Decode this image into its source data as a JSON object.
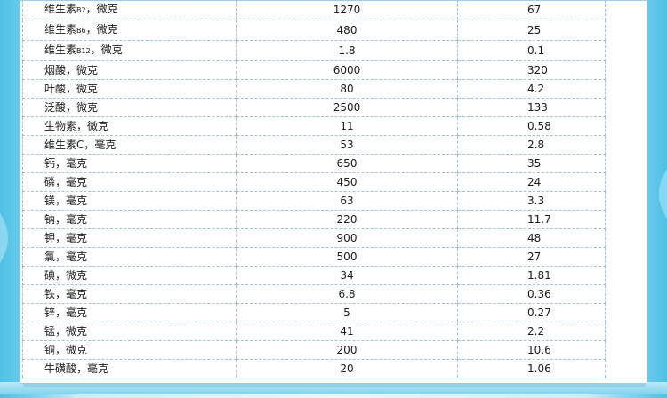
{
  "table": {
    "rows": [
      {
        "nutrient": "维生素",
        "sub": "B2",
        "unit": "，微克",
        "amount": "1270",
        "value": "67"
      },
      {
        "nutrient": "维生素",
        "sub": "B6",
        "unit": "，微克",
        "amount": "480",
        "value": "25"
      },
      {
        "nutrient": "维生素",
        "sub": "B12",
        "unit": "，微克",
        "amount": "1.8",
        "value": "0.1"
      },
      {
        "nutrient": "烟酸",
        "sub": "",
        "unit": "，微克",
        "amount": "6000",
        "value": "320"
      },
      {
        "nutrient": "叶酸",
        "sub": "",
        "unit": "，微克",
        "amount": "80",
        "value": "4.2"
      },
      {
        "nutrient": "泛酸",
        "sub": "",
        "unit": "，微克",
        "amount": "2500",
        "value": "133"
      },
      {
        "nutrient": "生物素",
        "sub": "",
        "unit": "，微克",
        "amount": "11",
        "value": "0.58"
      },
      {
        "nutrient": "维生素C",
        "sub": "",
        "unit": "，毫克",
        "amount": "53",
        "value": "2.8"
      },
      {
        "nutrient": "钙",
        "sub": "",
        "unit": "，毫克",
        "amount": "650",
        "value": "35"
      },
      {
        "nutrient": "磷",
        "sub": "",
        "unit": "，毫克",
        "amount": "450",
        "value": "24"
      },
      {
        "nutrient": "镁",
        "sub": "",
        "unit": "，毫克",
        "amount": "63",
        "value": "3.3"
      },
      {
        "nutrient": "钠",
        "sub": "",
        "unit": "，毫克",
        "amount": "220",
        "value": "11.7"
      },
      {
        "nutrient": "钾",
        "sub": "",
        "unit": "，毫克",
        "amount": "900",
        "value": "48"
      },
      {
        "nutrient": "氯",
        "sub": "",
        "unit": "，毫克",
        "amount": "500",
        "value": "27"
      },
      {
        "nutrient": "碘",
        "sub": "",
        "unit": "，微克",
        "amount": "34",
        "value": "1.81"
      },
      {
        "nutrient": "铁",
        "sub": "",
        "unit": "，毫克",
        "amount": "6.8",
        "value": "0.36"
      },
      {
        "nutrient": "锌",
        "sub": "",
        "unit": "，毫克",
        "amount": "5",
        "value": "0.27"
      },
      {
        "nutrient": "锰",
        "sub": "",
        "unit": "，微克",
        "amount": "41",
        "value": "2.2"
      },
      {
        "nutrient": "铜",
        "sub": "",
        "unit": "，微克",
        "amount": "200",
        "value": "10.6"
      },
      {
        "nutrient": "牛磺酸",
        "sub": "",
        "unit": "，毫克",
        "amount": "20",
        "value": "1.06"
      }
    ]
  },
  "colors": {
    "background_edge": "#4fc0e6",
    "background_center": "#e8f8fd",
    "card_border": "#9ccfe4",
    "grid_dash": "#a9bfd6",
    "text": "#1a1a1a"
  }
}
